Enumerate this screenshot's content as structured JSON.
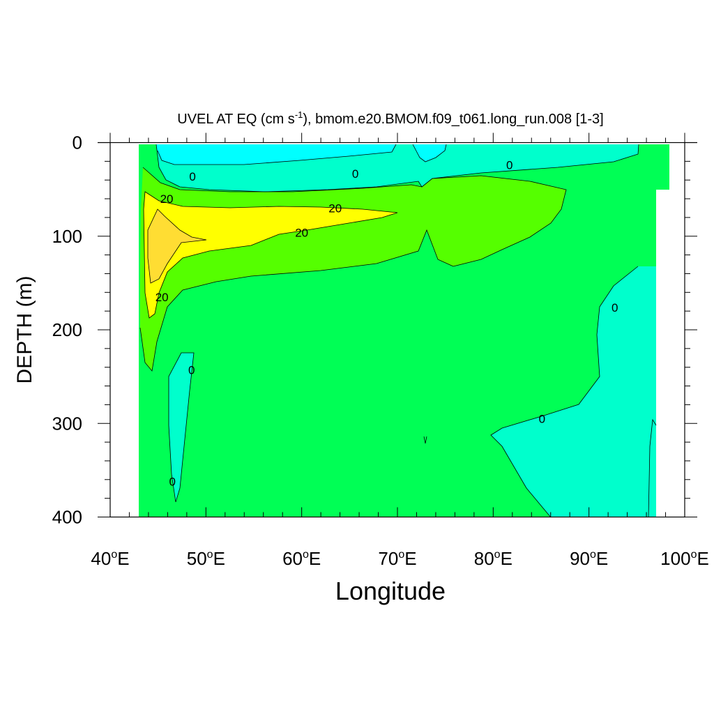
{
  "chart_data": {
    "type": "contour",
    "title": {
      "prefix": "UVEL AT EQ (cm s",
      "superscript": "-1",
      "suffix": "), bmom.e20.BMOM.f09_t061.long_run.008 [1-3]"
    },
    "xlabel": "Longitude",
    "ylabel": "DEPTH (m)",
    "xlim": [
      40,
      100
    ],
    "ylim": [
      0,
      400
    ],
    "y_reversed": true,
    "x_ticks": [
      {
        "value": 40,
        "num": "40",
        "sup": "o",
        "suffix": "E"
      },
      {
        "value": 50,
        "num": "50",
        "sup": "o",
        "suffix": "E"
      },
      {
        "value": 60,
        "num": "60",
        "sup": "o",
        "suffix": "E"
      },
      {
        "value": 70,
        "num": "70",
        "sup": "o",
        "suffix": "E"
      },
      {
        "value": 80,
        "num": "80",
        "sup": "o",
        "suffix": "E"
      },
      {
        "value": 90,
        "num": "90",
        "sup": "o",
        "suffix": "E"
      },
      {
        "value": 100,
        "num": "100",
        "sup": "o",
        "suffix": "E"
      }
    ],
    "y_ticks": [
      "0",
      "100",
      "200",
      "300",
      "400"
    ],
    "level_colors": {
      "lt_minus10": "#00ffff",
      "minus10_to_0": "#00ffcc",
      "0_to_10": "#00ff55",
      "10_to_20": "#55ff00",
      "20_to_30": "#ffff00",
      "gt_30": "#ffdd33"
    },
    "contour_labels": [
      {
        "text": "0",
        "lon": 48.6,
        "depth": 36
      },
      {
        "text": "0",
        "lon": 65.6,
        "depth": 33
      },
      {
        "text": "0",
        "lon": 81.7,
        "depth": 24
      },
      {
        "text": "20",
        "lon": 45.9,
        "depth": 60
      },
      {
        "text": "20",
        "lon": 63.5,
        "depth": 70
      },
      {
        "text": "20",
        "lon": 60.0,
        "depth": 96
      },
      {
        "text": "20",
        "lon": 45.4,
        "depth": 165
      },
      {
        "text": "0",
        "lon": 92.7,
        "depth": 176
      },
      {
        "text": "0",
        "lon": 48.5,
        "depth": 243
      },
      {
        "text": "0",
        "lon": 85.1,
        "depth": 295
      },
      {
        "text": "0",
        "lon": 46.5,
        "depth": 362
      }
    ]
  }
}
